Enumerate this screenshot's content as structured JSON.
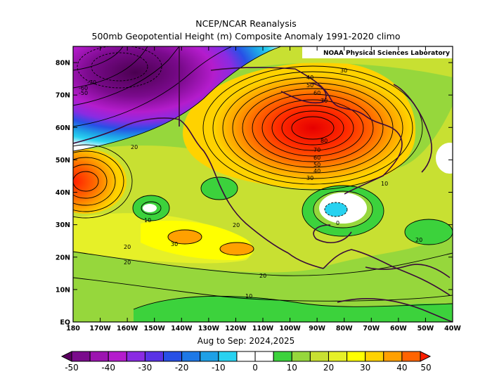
{
  "titles": {
    "line1": "NCEP/NCAR Reanalysis",
    "line2": "500mb Geopotential Height (m) Composite Anomaly 1991-2020 climo",
    "period": "Aug to Sep: 2024,2025",
    "credit": "NOAA Physical Sciences Laboratory"
  },
  "axes": {
    "lat_ticks": [
      {
        "label": "80N",
        "value": 80
      },
      {
        "label": "70N",
        "value": 70
      },
      {
        "label": "60N",
        "value": 60
      },
      {
        "label": "50N",
        "value": 50
      },
      {
        "label": "40N",
        "value": 40
      },
      {
        "label": "30N",
        "value": 30
      },
      {
        "label": "20N",
        "value": 20
      },
      {
        "label": "10N",
        "value": 10
      },
      {
        "label": "EQ",
        "value": 0
      }
    ],
    "lon_ticks": [
      {
        "label": "180",
        "value": 180
      },
      {
        "label": "170W",
        "value": 170
      },
      {
        "label": "160W",
        "value": 160
      },
      {
        "label": "150W",
        "value": 150
      },
      {
        "label": "140W",
        "value": 140
      },
      {
        "label": "130W",
        "value": 130
      },
      {
        "label": "120W",
        "value": 120
      },
      {
        "label": "110W",
        "value": 110
      },
      {
        "label": "100W",
        "value": 100
      },
      {
        "label": "90W",
        "value": 90
      },
      {
        "label": "80W",
        "value": 80
      },
      {
        "label": "70W",
        "value": 70
      },
      {
        "label": "60W",
        "value": 60
      },
      {
        "label": "50W",
        "value": 50
      },
      {
        "label": "40W",
        "value": 40
      }
    ],
    "lat_range": [
      0,
      85
    ],
    "lon_range_west": [
      180,
      40
    ]
  },
  "colorbar": {
    "labels": [
      "-50",
      "-40",
      "-30",
      "-20",
      "-10",
      "0",
      "10",
      "20",
      "30",
      "40",
      "50"
    ],
    "bins": [
      {
        "value": -50,
        "color": "#5a0060"
      },
      {
        "value": -45,
        "color": "#7a0a8c"
      },
      {
        "value": -40,
        "color": "#9c14b0"
      },
      {
        "value": -35,
        "color": "#b41ccc"
      },
      {
        "value": -30,
        "color": "#8a2be2"
      },
      {
        "value": -25,
        "color": "#5a32e6"
      },
      {
        "value": -20,
        "color": "#2850e6"
      },
      {
        "value": -15,
        "color": "#1e78e6"
      },
      {
        "value": -10,
        "color": "#1ea0e6"
      },
      {
        "value": -5,
        "color": "#28d2f0"
      },
      {
        "value": 0,
        "color": "#ffffff"
      },
      {
        "value": 5,
        "color": "#ffffff"
      },
      {
        "value": 10,
        "color": "#3cd23c"
      },
      {
        "value": 15,
        "color": "#96d73c"
      },
      {
        "value": 20,
        "color": "#c8e032"
      },
      {
        "value": 25,
        "color": "#e6f028"
      },
      {
        "value": 30,
        "color": "#ffff00"
      },
      {
        "value": 35,
        "color": "#ffd200"
      },
      {
        "value": 40,
        "color": "#ffa000"
      },
      {
        "value": 45,
        "color": "#ff6400"
      },
      {
        "value": 50,
        "color": "#ff1e00"
      }
    ]
  },
  "contour_labels": [
    "-70",
    "-60",
    "-50",
    "20",
    "40",
    "50",
    "60",
    "70",
    "30",
    "80",
    "70",
    "60",
    "50",
    "40",
    "30",
    "10",
    "10",
    "0",
    "20",
    "20",
    "30",
    "20",
    "20",
    "20",
    "10",
    "10"
  ],
  "features": [
    {
      "name": "trough-arctic-pacific",
      "anomaly_min": -70
    },
    {
      "name": "ridge-north-america",
      "anomaly_max": 80
    },
    {
      "name": "ridge-north-pacific",
      "anomaly_max": 50
    },
    {
      "name": "low-southeast-us",
      "anomaly_min": -5
    }
  ]
}
